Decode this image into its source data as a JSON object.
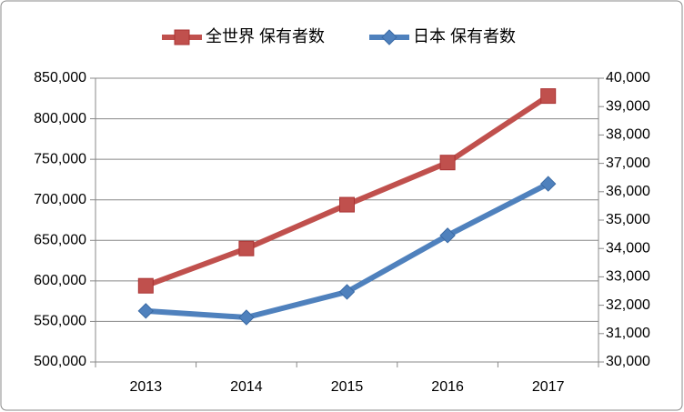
{
  "chart_data": {
    "type": "line",
    "categories": [
      "2013",
      "2014",
      "2015",
      "2016",
      "2017"
    ],
    "series": [
      {
        "name": "全世界 保有者数",
        "color": "#c0504d",
        "marker": "square",
        "values": [
          594000,
          640000,
          694000,
          746000,
          828000
        ]
      },
      {
        "name": "日本 保有者数",
        "color": "#4f81bd",
        "marker": "diamond",
        "axis": "y2",
        "values": [
          31800,
          31570,
          32470,
          34460,
          36280
        ]
      }
    ],
    "ylim": [
      500000,
      850000
    ],
    "yticks": [
      {
        "value": 500000,
        "label": "500,000"
      },
      {
        "value": 550000,
        "label": "550,000"
      },
      {
        "value": 600000,
        "label": "600,000"
      },
      {
        "value": 650000,
        "label": "650,000"
      },
      {
        "value": 700000,
        "label": "700,000"
      },
      {
        "value": 750000,
        "label": "750,000"
      },
      {
        "value": 800000,
        "label": "800,000"
      },
      {
        "value": 850000,
        "label": "850,000"
      }
    ],
    "y2lim": [
      30000,
      40000
    ],
    "y2ticks": [
      {
        "value": 30000,
        "label": "30,000"
      },
      {
        "value": 31000,
        "label": "31,000"
      },
      {
        "value": 32000,
        "label": "32,000"
      },
      {
        "value": 33000,
        "label": "33,000"
      },
      {
        "value": 34000,
        "label": "34,000"
      },
      {
        "value": 35000,
        "label": "35,000"
      },
      {
        "value": 36000,
        "label": "36,000"
      },
      {
        "value": 37000,
        "label": "37,000"
      },
      {
        "value": 38000,
        "label": "38,000"
      },
      {
        "value": 39000,
        "label": "39,000"
      },
      {
        "value": 40000,
        "label": "40,000"
      }
    ],
    "grid": true,
    "legend": "top"
  }
}
